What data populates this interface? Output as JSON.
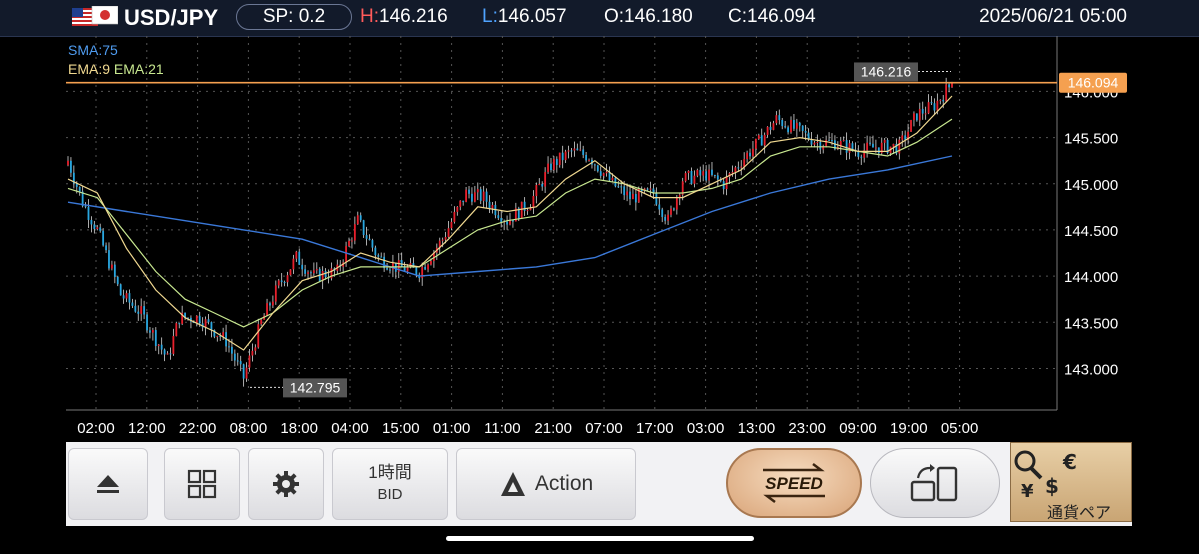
{
  "header": {
    "pair": "USD/JPY",
    "spread": "SP: 0.2",
    "high_label": "H:",
    "high": "146.216",
    "low_label": "L:",
    "low": "146.057",
    "open": "O:146.180",
    "close": "C:146.094",
    "datetime": "2025/06/21 05:00"
  },
  "indicators": {
    "sma": "SMA:75",
    "ema_fast": "EMA:9",
    "ema_slow": "EMA:21"
  },
  "chart_data": {
    "type": "candlestick",
    "y_ticks": [
      "146.000",
      "145.500",
      "145.000",
      "144.500",
      "144.000",
      "143.500",
      "143.000"
    ],
    "y_tick_values": [
      146.0,
      145.5,
      145.0,
      144.5,
      144.0,
      143.5,
      143.0
    ],
    "x_ticks": [
      "02:00",
      "12:00",
      "22:00",
      "08:00",
      "18:00",
      "04:00",
      "15:00",
      "01:00",
      "11:00",
      "21:00",
      "07:00",
      "17:00",
      "03:00",
      "13:00",
      "23:00",
      "09:00",
      "19:00",
      "05:00"
    ],
    "ylim": [
      142.55,
      146.6
    ],
    "current_price": "146.094",
    "current_price_value": 146.094,
    "high_marker": "146.216",
    "high_marker_value": 146.216,
    "low_marker": "142.795",
    "low_marker_value": 142.795,
    "close_path": [
      [
        0,
        145.25
      ],
      [
        5,
        144.8
      ],
      [
        10,
        144.5
      ],
      [
        18,
        143.8
      ],
      [
        25,
        143.6
      ],
      [
        34,
        143.1
      ],
      [
        38,
        143.55
      ],
      [
        45,
        143.55
      ],
      [
        54,
        143.3
      ],
      [
        60,
        142.9
      ],
      [
        66,
        143.5
      ],
      [
        72,
        143.9
      ],
      [
        78,
        144.2
      ],
      [
        84,
        144.0
      ],
      [
        92,
        144.05
      ],
      [
        99,
        144.6
      ],
      [
        106,
        144.2
      ],
      [
        112,
        144.1
      ],
      [
        120,
        144.05
      ],
      [
        128,
        144.4
      ],
      [
        136,
        144.9
      ],
      [
        142,
        144.85
      ],
      [
        150,
        144.6
      ],
      [
        158,
        144.8
      ],
      [
        165,
        145.2
      ],
      [
        172,
        145.35
      ],
      [
        178,
        145.3
      ],
      [
        186,
        145.0
      ],
      [
        192,
        144.85
      ],
      [
        200,
        144.9
      ],
      [
        205,
        144.6
      ],
      [
        210,
        145.05
      ],
      [
        218,
        145.1
      ],
      [
        224,
        145.0
      ],
      [
        230,
        145.25
      ],
      [
        236,
        145.45
      ],
      [
        242,
        145.7
      ],
      [
        248,
        145.6
      ],
      [
        256,
        145.45
      ],
      [
        262,
        145.45
      ],
      [
        270,
        145.35
      ],
      [
        276,
        145.4
      ],
      [
        284,
        145.4
      ],
      [
        290,
        145.75
      ],
      [
        296,
        145.85
      ],
      [
        302,
        146.09
      ]
    ],
    "ema9_path": [
      [
        0,
        145.05
      ],
      [
        10,
        144.9
      ],
      [
        20,
        144.3
      ],
      [
        30,
        143.85
      ],
      [
        40,
        143.55
      ],
      [
        50,
        143.4
      ],
      [
        60,
        143.2
      ],
      [
        70,
        143.6
      ],
      [
        80,
        143.95
      ],
      [
        90,
        144.05
      ],
      [
        100,
        144.25
      ],
      [
        110,
        144.15
      ],
      [
        120,
        144.1
      ],
      [
        130,
        144.4
      ],
      [
        140,
        144.75
      ],
      [
        150,
        144.7
      ],
      [
        160,
        144.75
      ],
      [
        170,
        145.05
      ],
      [
        180,
        145.25
      ],
      [
        190,
        145.0
      ],
      [
        200,
        144.85
      ],
      [
        210,
        144.85
      ],
      [
        220,
        145.0
      ],
      [
        230,
        145.15
      ],
      [
        240,
        145.45
      ],
      [
        250,
        145.5
      ],
      [
        260,
        145.45
      ],
      [
        270,
        145.35
      ],
      [
        280,
        145.35
      ],
      [
        290,
        145.55
      ],
      [
        302,
        145.95
      ]
    ],
    "ema21_path": [
      [
        0,
        144.95
      ],
      [
        10,
        144.85
      ],
      [
        20,
        144.45
      ],
      [
        30,
        144.05
      ],
      [
        40,
        143.75
      ],
      [
        50,
        143.6
      ],
      [
        60,
        143.45
      ],
      [
        70,
        143.6
      ],
      [
        80,
        143.85
      ],
      [
        90,
        144.0
      ],
      [
        100,
        144.1
      ],
      [
        110,
        144.1
      ],
      [
        120,
        144.1
      ],
      [
        130,
        144.3
      ],
      [
        140,
        144.5
      ],
      [
        150,
        144.6
      ],
      [
        160,
        144.65
      ],
      [
        170,
        144.9
      ],
      [
        180,
        145.05
      ],
      [
        190,
        145.0
      ],
      [
        200,
        144.9
      ],
      [
        210,
        144.9
      ],
      [
        220,
        144.95
      ],
      [
        230,
        145.05
      ],
      [
        240,
        145.3
      ],
      [
        250,
        145.4
      ],
      [
        260,
        145.4
      ],
      [
        270,
        145.35
      ],
      [
        280,
        145.3
      ],
      [
        290,
        145.45
      ],
      [
        302,
        145.7
      ]
    ],
    "sma75_path": [
      [
        0,
        144.8
      ],
      [
        20,
        144.7
      ],
      [
        40,
        144.6
      ],
      [
        60,
        144.5
      ],
      [
        80,
        144.4
      ],
      [
        100,
        144.2
      ],
      [
        120,
        144.0
      ],
      [
        140,
        144.05
      ],
      [
        160,
        144.1
      ],
      [
        180,
        144.2
      ],
      [
        200,
        144.45
      ],
      [
        220,
        144.7
      ],
      [
        240,
        144.9
      ],
      [
        260,
        145.05
      ],
      [
        280,
        145.15
      ],
      [
        302,
        145.3
      ]
    ]
  },
  "controls": {
    "timeframe": "1時間",
    "price_side": "BID",
    "action_label": "Action",
    "speed_label": "SPEED",
    "currency_label": "通貨ペア"
  },
  "colors": {
    "up": "#e8202c",
    "down": "#29a7e0",
    "sma": "#3a78d8",
    "ema_fast": "#f0d890",
    "ema_slow": "#c8e890",
    "price_line": "#f5a050"
  }
}
